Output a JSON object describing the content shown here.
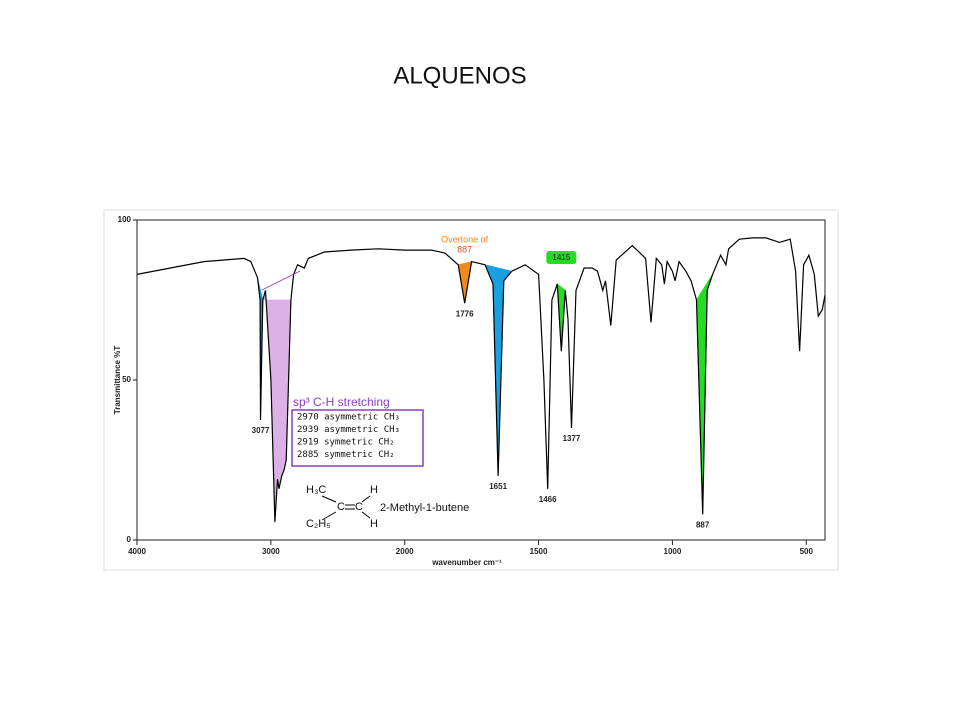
{
  "chart_data": {
    "type": "line",
    "title": "ALQUENOS",
    "x_label": "wavenumber cm⁻¹",
    "y_label": "Transmittance %T",
    "x": [
      4000,
      3500,
      3200,
      3150,
      3100,
      3080,
      3077,
      3060,
      3040,
      3000,
      2970,
      2950,
      2939,
      2919,
      2900,
      2885,
      2870,
      2850,
      2830,
      2800,
      2750,
      2720,
      2600,
      2400,
      2200,
      2000,
      1900,
      1850,
      1800,
      1776,
      1750,
      1700,
      1670,
      1651,
      1630,
      1600,
      1550,
      1500,
      1480,
      1466,
      1450,
      1430,
      1415,
      1400,
      1390,
      1377,
      1360,
      1330,
      1300,
      1280,
      1260,
      1250,
      1230,
      1210,
      1150,
      1100,
      1080,
      1060,
      1040,
      1030,
      1020,
      1000,
      990,
      975,
      950,
      930,
      910,
      887,
      870,
      850,
      820,
      800,
      790,
      750,
      700,
      650,
      600,
      560,
      540,
      525,
      510,
      490,
      470,
      455,
      440,
      430
    ],
    "series": [
      {
        "color": "#000000",
        "values": [
          83,
          87,
          88,
          87,
          82,
          75,
          37.5,
          75,
          78,
          50,
          5.6,
          19,
          16,
          20,
          22,
          25,
          47,
          75,
          83,
          86,
          85,
          88,
          90,
          90.6,
          91,
          90.6,
          90.6,
          89.7,
          86,
          74,
          87,
          86,
          80,
          20,
          81,
          84,
          86,
          83,
          50,
          16,
          75,
          80,
          59,
          78,
          69,
          35,
          78,
          85,
          85,
          84,
          78,
          81,
          67,
          87.5,
          92,
          88,
          68,
          88,
          86,
          80,
          87,
          84,
          81,
          87,
          84,
          81,
          75,
          8,
          78,
          83,
          89,
          86,
          91,
          94,
          94.4,
          94.4,
          93,
          94,
          84,
          59,
          86,
          89,
          83,
          70,
          72,
          76.5
        ]
      }
    ],
    "xlim": [
      4000,
      430
    ],
    "ylim": [
      0,
      100
    ],
    "xticks": [
      4000,
      3000,
      2000,
      1500,
      1000,
      500
    ],
    "yticks": [
      0,
      50,
      100
    ],
    "highlights": [
      {
        "from": 3100,
        "to": 3060,
        "color": "#1aa0e0"
      },
      {
        "from": 3060,
        "to": 2850,
        "color": "#dcb2e6"
      },
      {
        "from": 1800,
        "to": 1750,
        "color": "#f08a1c"
      },
      {
        "from": 1700,
        "to": 1600,
        "color": "#1aa0e0"
      },
      {
        "from": 1430,
        "to": 1400,
        "color": "#22dd22"
      },
      {
        "from": 910,
        "to": 850,
        "color": "#22dd22"
      }
    ],
    "peak_labels": [
      3077,
      1776,
      1651,
      1466,
      1377,
      887
    ],
    "overtone": {
      "text": "Overtone of",
      "peak": "887"
    },
    "marker": {
      "value": 1415,
      "color": "#22dd22"
    },
    "sp3_box": {
      "title": "sp³ C-H stretching",
      "lines": [
        "2970 asymmetric CH₃",
        "2939 asymmetric CH₃",
        "2919 symmetric CH₂",
        "2885 symmetric CH₂"
      ]
    },
    "molecule": {
      "atoms": [
        "H₃C",
        "H",
        "C",
        "C",
        "C₂H₅",
        "H"
      ],
      "name": "2-Methyl-1-butene"
    }
  }
}
